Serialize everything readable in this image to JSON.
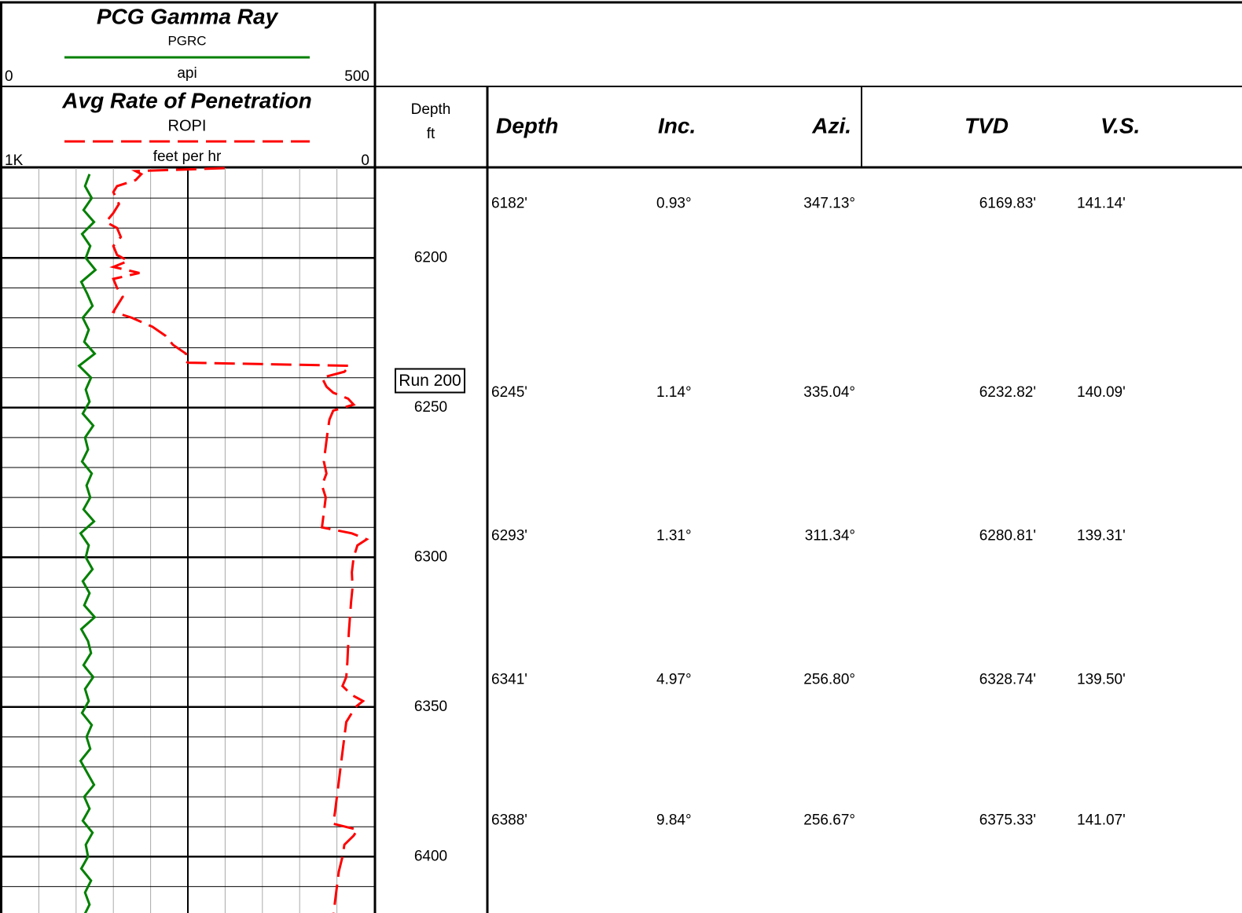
{
  "chart_data": {
    "type": "well_log",
    "depth_label": "Depth",
    "depth_unit": "ft",
    "ylim": [
      6170,
      6420
    ],
    "yticks": [
      6200,
      6250,
      6300,
      6350,
      6400
    ],
    "series": [
      {
        "name": "PCG Gamma Ray",
        "mnemonic": "PGRC",
        "unit": "api",
        "color": "#008000",
        "style": "solid",
        "xlim": [
          0,
          500
        ],
        "xticks": [
          0,
          500
        ],
        "depth": [
          6172,
          6176,
          6180,
          6184,
          6188,
          6192,
          6196,
          6200,
          6204,
          6208,
          6212,
          6216,
          6220,
          6224,
          6228,
          6232,
          6236,
          6240,
          6244,
          6248,
          6252,
          6256,
          6260,
          6264,
          6268,
          6272,
          6276,
          6280,
          6284,
          6288,
          6292,
          6296,
          6300,
          6304,
          6308,
          6312,
          6316,
          6320,
          6324,
          6328,
          6332,
          6336,
          6340,
          6344,
          6348,
          6352,
          6356,
          6360,
          6364,
          6368,
          6372,
          6376,
          6380,
          6384,
          6388,
          6392,
          6396,
          6400,
          6404,
          6408,
          6412,
          6416,
          6420
        ],
        "values": [
          118,
          112,
          121,
          110,
          124,
          108,
          119,
          113,
          126,
          107,
          115,
          122,
          109,
          117,
          111,
          125,
          104,
          120,
          113,
          118,
          109,
          123,
          112,
          116,
          108,
          121,
          114,
          119,
          110,
          124,
          106,
          117,
          113,
          122,
          109,
          118,
          111,
          125,
          107,
          116,
          120,
          110,
          123,
          112,
          117,
          108,
          121,
          114,
          119,
          106,
          115,
          124,
          111,
          118,
          109,
          122,
          113,
          116,
          107,
          120,
          112,
          118,
          110
        ]
      },
      {
        "name": "Avg Rate of Penetration",
        "mnemonic": "ROPI",
        "unit": "feet per hr",
        "color": "#ff0000",
        "style": "dashed",
        "xlim": [
          1000,
          0
        ],
        "xticks": [
          {
            "value": 1000,
            "label": "1K"
          },
          0
        ],
        "depth": [
          6170,
          6171,
          6172,
          6174,
          6176,
          6178,
          6182,
          6185,
          6188,
          6190,
          6193,
          6196,
          6199,
          6201,
          6203,
          6205,
          6207,
          6210,
          6213,
          6216,
          6218,
          6220,
          6223,
          6226,
          6229,
          6232,
          6234,
          6235,
          6236,
          6238,
          6240,
          6243,
          6245,
          6247,
          6249,
          6251,
          6254,
          6258,
          6263,
          6268,
          6272,
          6276,
          6280,
          6285,
          6290,
          6292,
          6294,
          6296,
          6300,
          6305,
          6310,
          6315,
          6320,
          6325,
          6330,
          6335,
          6340,
          6343,
          6346,
          6348,
          6350,
          6355,
          6360,
          6365,
          6370,
          6375,
          6380,
          6385,
          6389,
          6391,
          6393,
          6396,
          6400,
          6405,
          6410,
          6415,
          6420
        ],
        "values": [
          401,
          640,
          625,
          640,
          690,
          700,
          685,
          700,
          720,
          690,
          680,
          700,
          690,
          660,
          700,
          630,
          700,
          690,
          675,
          690,
          700,
          650,
          595,
          560,
          540,
          505,
          510,
          500,
          65,
          80,
          140,
          128,
          110,
          70,
          55,
          110,
          120,
          125,
          130,
          135,
          128,
          140,
          130,
          135,
          140,
          60,
          20,
          45,
          55,
          60,
          58,
          62,
          65,
          68,
          70,
          72,
          75,
          85,
          60,
          30,
          50,
          75,
          80,
          85,
          90,
          95,
          100,
          105,
          110,
          45,
          55,
          80,
          85,
          95,
          100,
          105,
          110
        ]
      }
    ],
    "annotations": [
      {
        "text": "Run 200",
        "depth": 6241
      }
    ]
  },
  "survey": {
    "columns": [
      "Depth",
      "Inc.",
      "Azi.",
      "TVD",
      "V.S."
    ],
    "rows": [
      {
        "md": 6182,
        "cells": [
          "6182'",
          "0.93°",
          "347.13°",
          "6169.83'",
          "141.14'"
        ]
      },
      {
        "md": 6245,
        "cells": [
          "6245'",
          "1.14°",
          "335.04°",
          "6232.82'",
          "140.09'"
        ]
      },
      {
        "md": 6293,
        "cells": [
          "6293'",
          "1.31°",
          "311.34°",
          "6280.81'",
          "139.31'"
        ]
      },
      {
        "md": 6341,
        "cells": [
          "6341'",
          "4.97°",
          "256.80°",
          "6328.74'",
          "139.50'"
        ]
      },
      {
        "md": 6388,
        "cells": [
          "6388'",
          "9.84°",
          "256.67°",
          "6375.33'",
          "141.07'"
        ]
      }
    ]
  }
}
